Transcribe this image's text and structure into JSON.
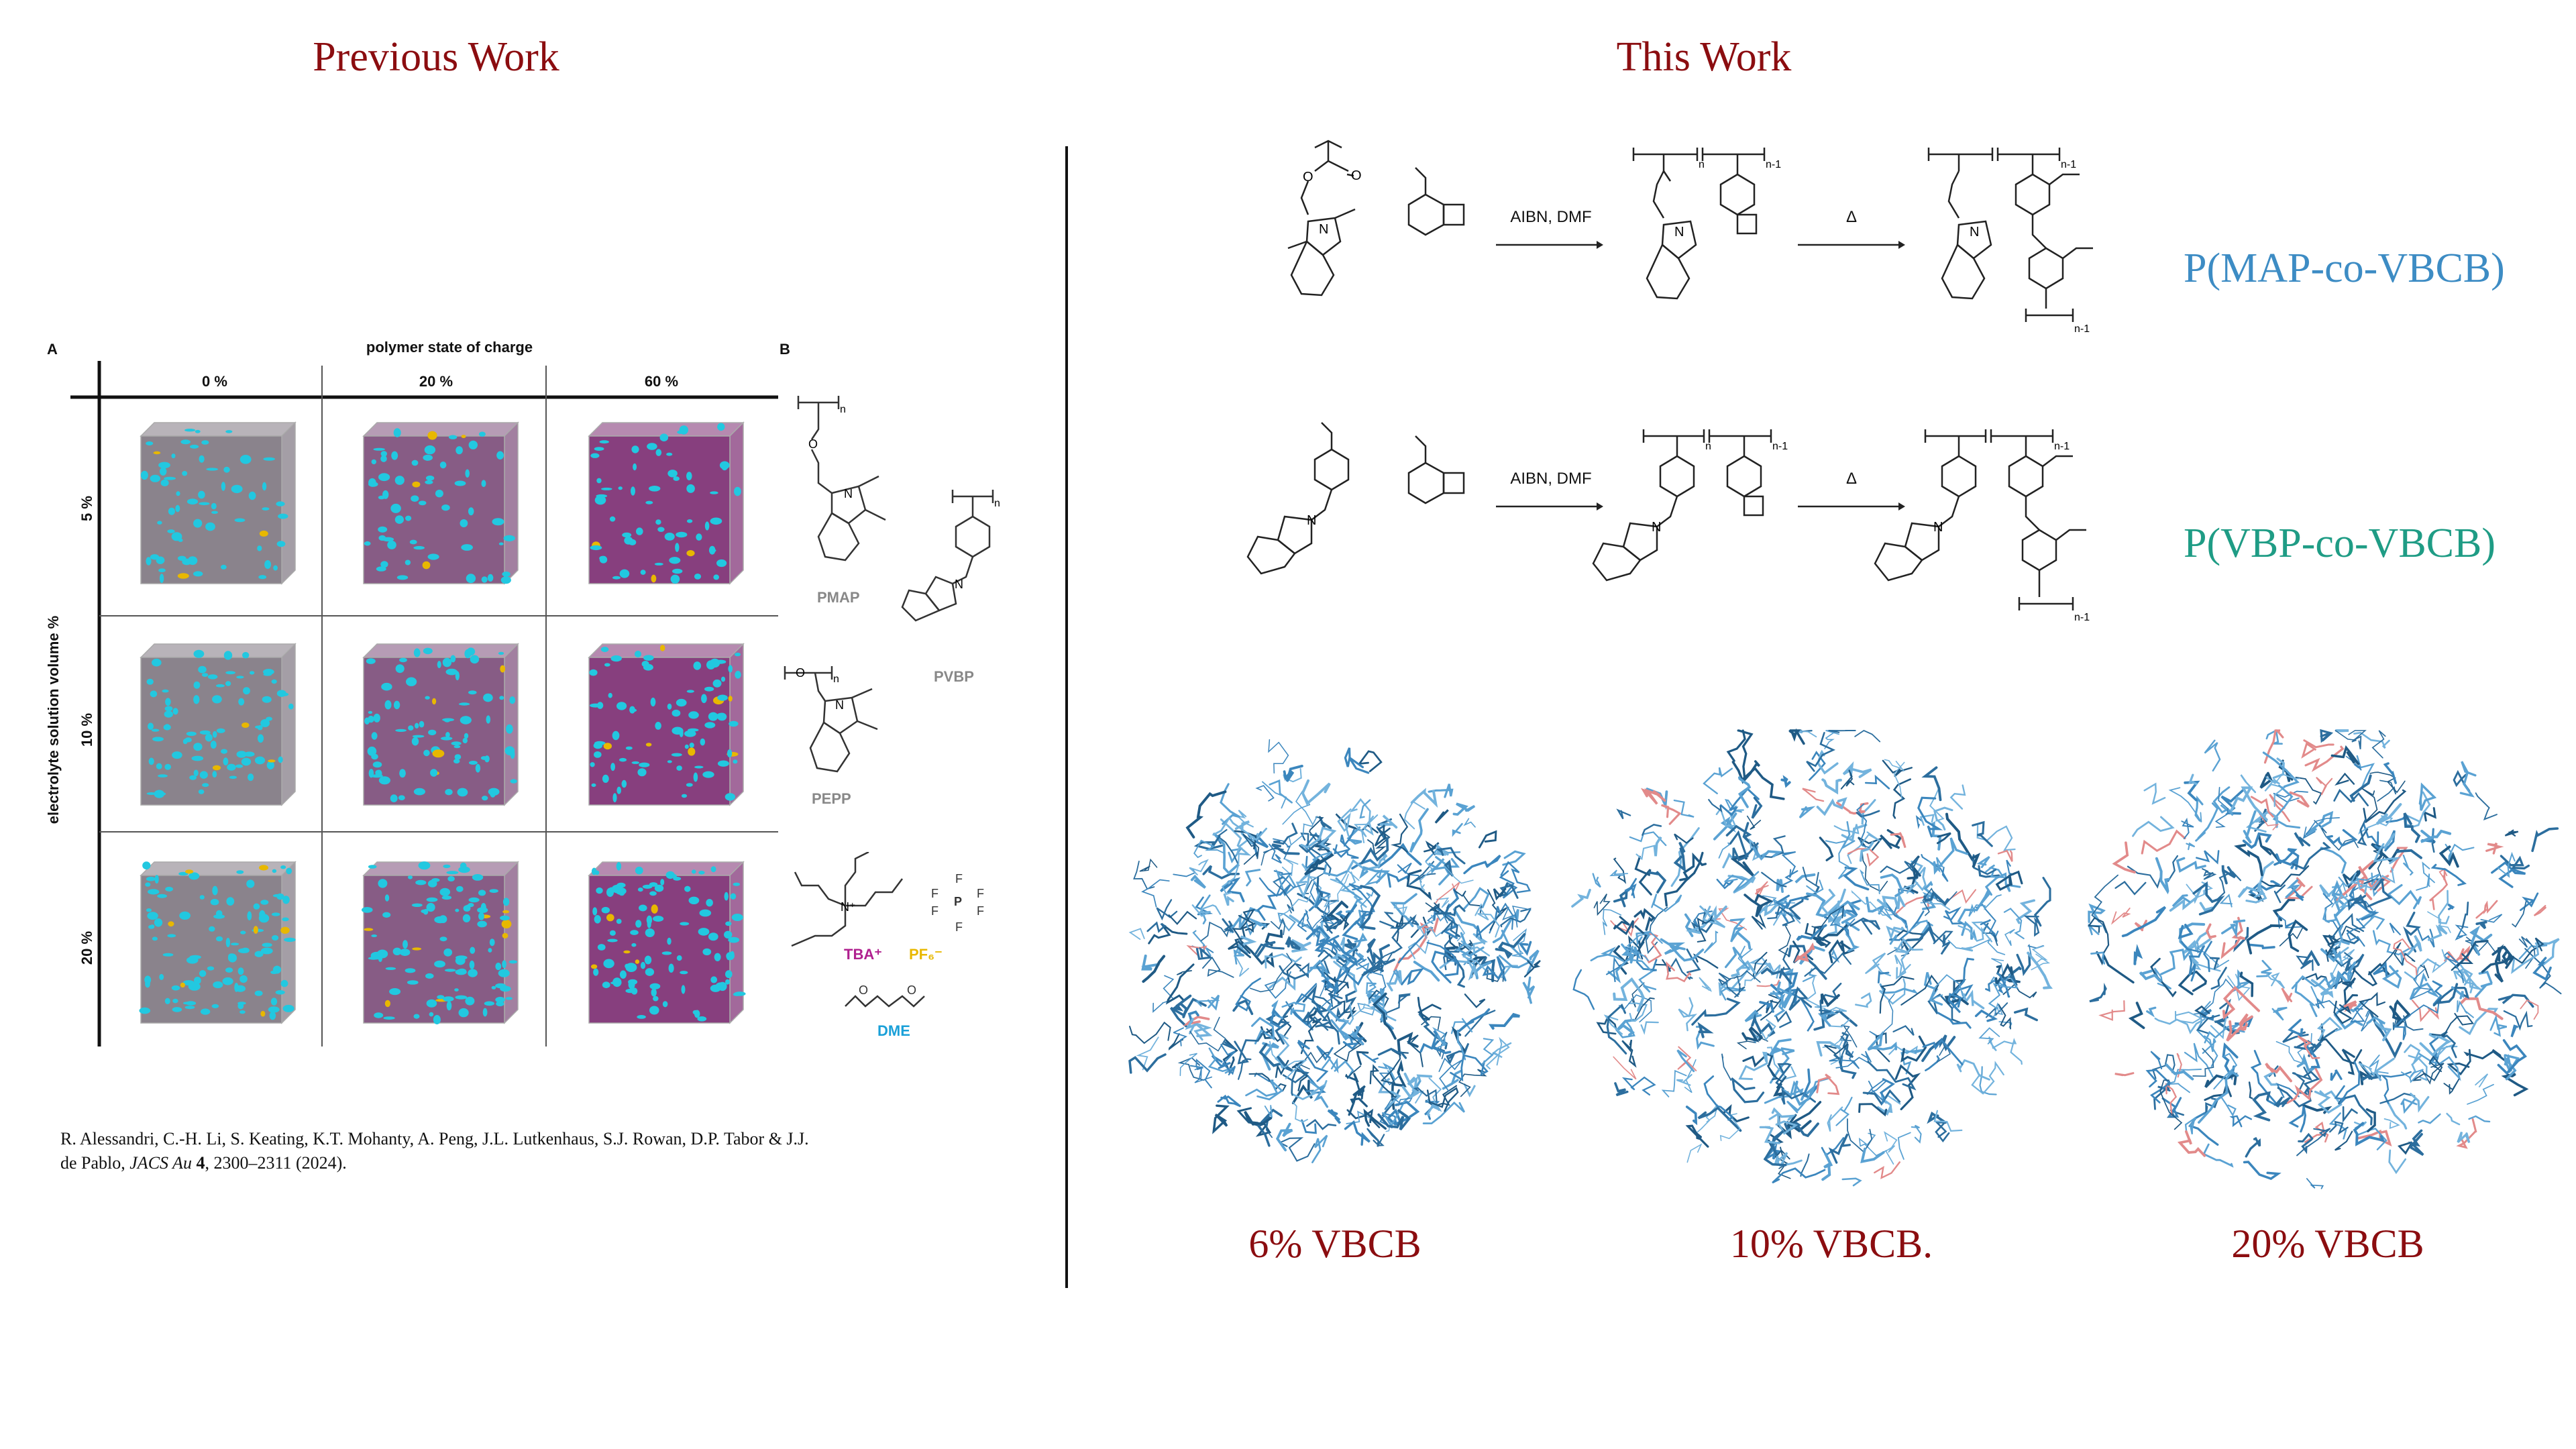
{
  "headers": {
    "left": "Previous Work",
    "right": "This Work"
  },
  "left_figure": {
    "panel_a": "A",
    "panel_b": "B",
    "column_title": "polymer state of charge",
    "columns": [
      "0 %",
      "20 %",
      "60 %"
    ],
    "row_title": "electrolyte solution volume %",
    "rows": [
      "5 %",
      "10 %",
      "20 %"
    ],
    "molecules": {
      "pmap": "PMAP",
      "pvbp": "PVBP",
      "pepp": "PEPP",
      "tba": "TBA⁺",
      "pf6": "PF₆⁻",
      "dme": "DME",
      "sub_n": "n",
      "atom_o": "O",
      "atom_n": "N",
      "atom_p": "P",
      "atom_f": "F",
      "atom_nplus": "N⁺"
    },
    "colors": {
      "tba": "#b0208f",
      "pf6": "#e8b800",
      "dme": "#1aa0d8",
      "cube_fill_low": "#7a6e78",
      "cube_fill_high": "#7a2a70",
      "particle": "#22c8e0"
    }
  },
  "citation": {
    "line1": "R. Alessandri, C.-H. Li, S. Keating, K.T. Mohanty, A. Peng, J.L. Lutkenhaus, S.J. Rowan, D.P. Tabor & J.J.",
    "line2_a": "de Pablo, ",
    "line2_journal": "JACS Au",
    "line2_vol": " 4",
    "line2_rest": ", 2300–2311 (2024)."
  },
  "scheme": {
    "reaction1_reagent": "AIBN, DMF",
    "reaction1_heat": "Δ",
    "reaction2_reagent": "AIBN, DMF",
    "reaction2_heat": "Δ",
    "label1": "P(MAP-co-VBCB)",
    "label2": "P(VBP-co-VBCB)",
    "label1_color": "#3d8cc4",
    "label2_color": "#1f9c85",
    "sub_n": "n",
    "sub_n1": "n-1",
    "atom_o": "O",
    "atom_n": "N"
  },
  "simulations": [
    {
      "label": "6% VBCB"
    },
    {
      "label": "10% VBCB."
    },
    {
      "label": "20% VBCB"
    }
  ]
}
